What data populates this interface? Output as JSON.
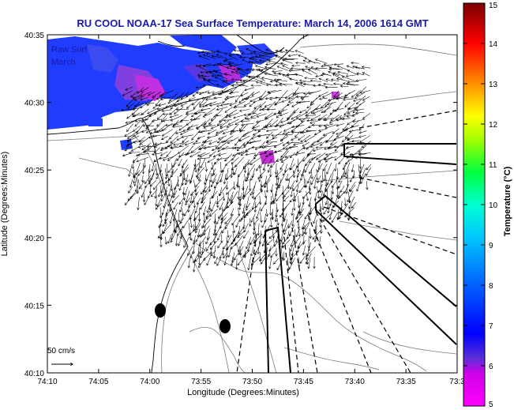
{
  "title": "RU COOL  NOAA-17  Sea Surface Temperature:  March 14, 2006 1614 GMT",
  "overlay_text": {
    "line1": "Raw Surf",
    "line2": "March"
  },
  "axes": {
    "xlabel": "Longitude (Degrees:Minutes)",
    "ylabel": "Latitude (Degrees:Minutes)",
    "x_ticks": [
      "74:10",
      "74:05",
      "74:00",
      "73:55",
      "73:50",
      "73:45",
      "73:40",
      "73:35",
      "73:3"
    ],
    "y_ticks": [
      "40:35",
      "40:30",
      "40:25",
      "40:20",
      "40:15",
      "40:10"
    ]
  },
  "colorbar": {
    "title": "Temperature (°C)",
    "ticks": [
      "15",
      "14",
      "13",
      "12",
      "11",
      "10",
      "9",
      "8",
      "7",
      "6",
      "5"
    ],
    "range": [
      5,
      15
    ],
    "colors": [
      "#ff00ff",
      "#6a2cd6",
      "#0000ff",
      "#0096ff",
      "#00ffff",
      "#00ff80",
      "#7fff00",
      "#ffff00",
      "#ff8000",
      "#ff0000",
      "#800000"
    ]
  },
  "scale_bar": {
    "label": "50 cm/s"
  },
  "colors": {
    "title": "#1a1aa8",
    "sst_dominant": "#1f3cff",
    "warm_patch": "#c030e0"
  }
}
